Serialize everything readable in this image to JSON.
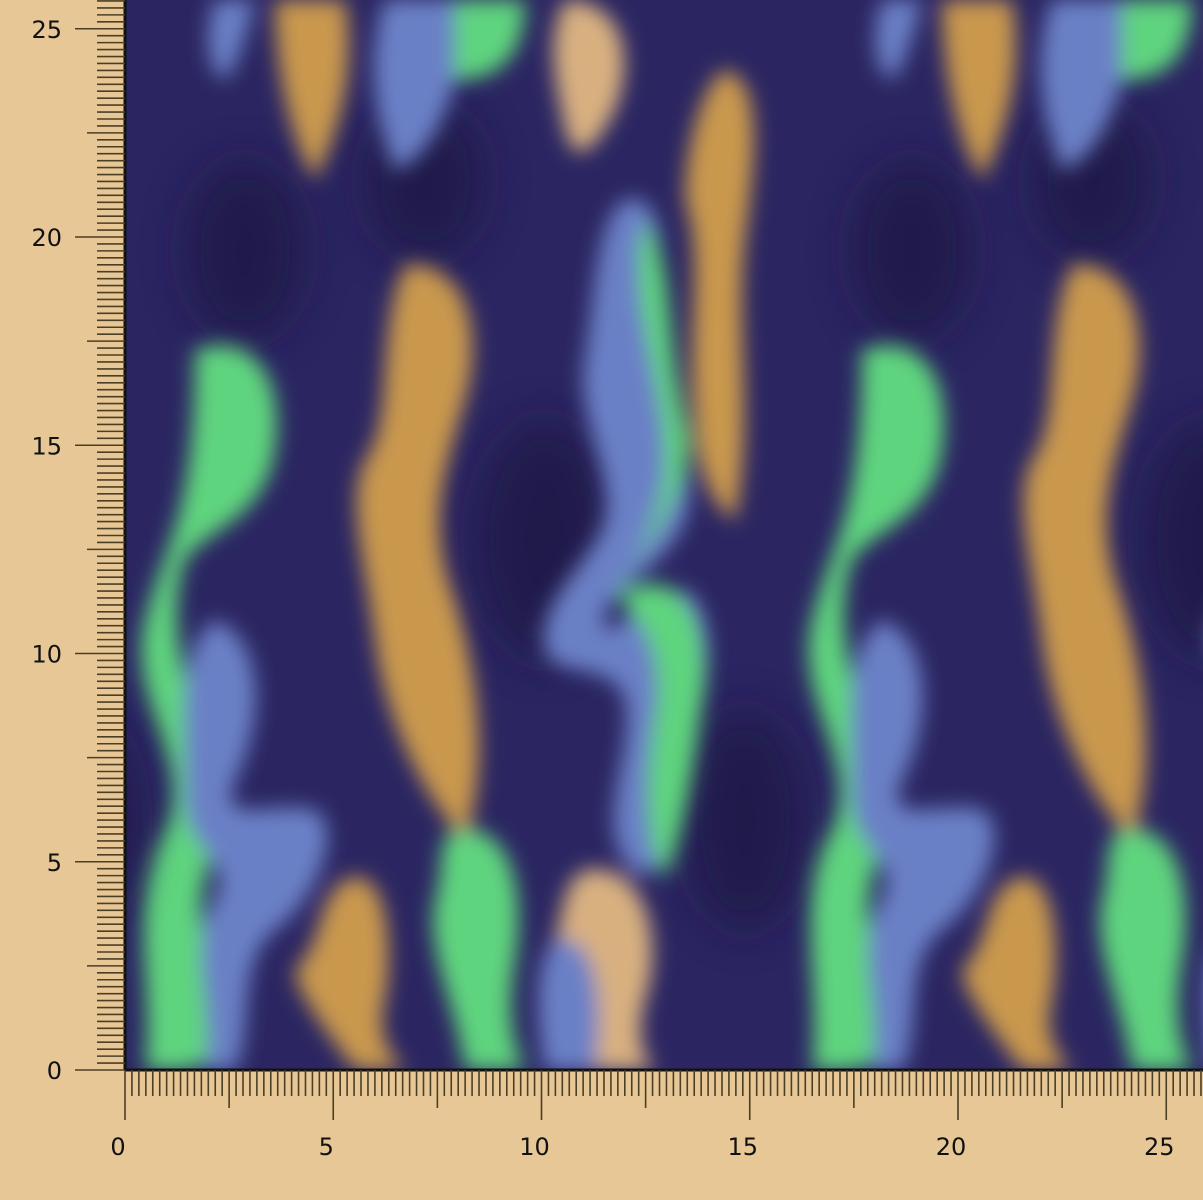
{
  "ruler": {
    "x_labels": [
      "0",
      "5",
      "10",
      "15",
      "20",
      "25"
    ],
    "y_labels": [
      "0",
      "5",
      "10",
      "15",
      "20",
      "25"
    ],
    "x_range": [
      0,
      26
    ],
    "y_range": [
      0,
      25.7
    ],
    "minor_ticks_per_unit": 6
  },
  "colors": {
    "background": "#e8c797",
    "fabric_base": "#2b2662",
    "green": "#5fd47e",
    "blue": "#6b80c6",
    "orange": "#c9984d",
    "tick": "#4a3f25"
  }
}
